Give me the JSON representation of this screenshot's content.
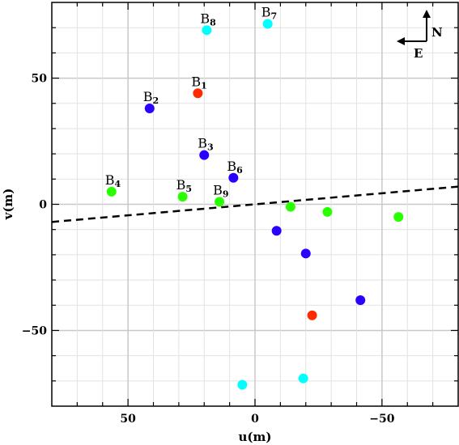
{
  "chart_data": {
    "type": "scatter",
    "xlabel": "u(m)",
    "ylabel": "v(m)",
    "xlim": [
      80,
      -80
    ],
    "ylim": [
      -80,
      80
    ],
    "x_ticks": [
      50,
      0,
      -50
    ],
    "x_tick_labels": [
      "50",
      "0",
      "−50"
    ],
    "y_ticks": [
      50,
      0,
      -50
    ],
    "y_tick_labels": [
      "50",
      "0",
      "−50"
    ],
    "grid": true,
    "colors": {
      "red": "#ff2a00",
      "blue": "#2a00ff",
      "cyan": "#00ffff",
      "green": "#2aff00"
    },
    "points": [
      {
        "u": 22.5,
        "v": 44,
        "color": "red",
        "label": "B",
        "sub": "1"
      },
      {
        "u": 41.5,
        "v": 38,
        "color": "blue",
        "label": "B",
        "sub": "2"
      },
      {
        "u": 20,
        "v": 19.5,
        "color": "blue",
        "label": "B",
        "sub": "3"
      },
      {
        "u": 56.5,
        "v": 5,
        "color": "green",
        "label": "B",
        "sub": "4"
      },
      {
        "u": 28.5,
        "v": 3,
        "color": "green",
        "label": "B",
        "sub": "5"
      },
      {
        "u": 8.5,
        "v": 10.5,
        "color": "blue",
        "label": "B",
        "sub": "6"
      },
      {
        "u": -5,
        "v": 71.5,
        "color": "cyan",
        "label": "B",
        "sub": "7"
      },
      {
        "u": 19,
        "v": 69,
        "color": "cyan",
        "label": "B",
        "sub": "8"
      },
      {
        "u": 14,
        "v": 1,
        "color": "green",
        "label": "B",
        "sub": "9"
      },
      {
        "u": -22.5,
        "v": -44,
        "color": "red"
      },
      {
        "u": -41.5,
        "v": -38,
        "color": "blue"
      },
      {
        "u": -20,
        "v": -19.5,
        "color": "blue"
      },
      {
        "u": -8.5,
        "v": -10.5,
        "color": "blue"
      },
      {
        "u": -56.5,
        "v": -5,
        "color": "green"
      },
      {
        "u": -28.5,
        "v": -3,
        "color": "green"
      },
      {
        "u": -14,
        "v": -1,
        "color": "green"
      },
      {
        "u": 5,
        "v": -71.5,
        "color": "cyan"
      },
      {
        "u": -19,
        "v": -69,
        "color": "cyan"
      }
    ],
    "dashed_line": {
      "u": [
        80,
        -80
      ],
      "v": [
        -7,
        7
      ]
    },
    "compass": {
      "north": "N",
      "east": "E"
    }
  }
}
